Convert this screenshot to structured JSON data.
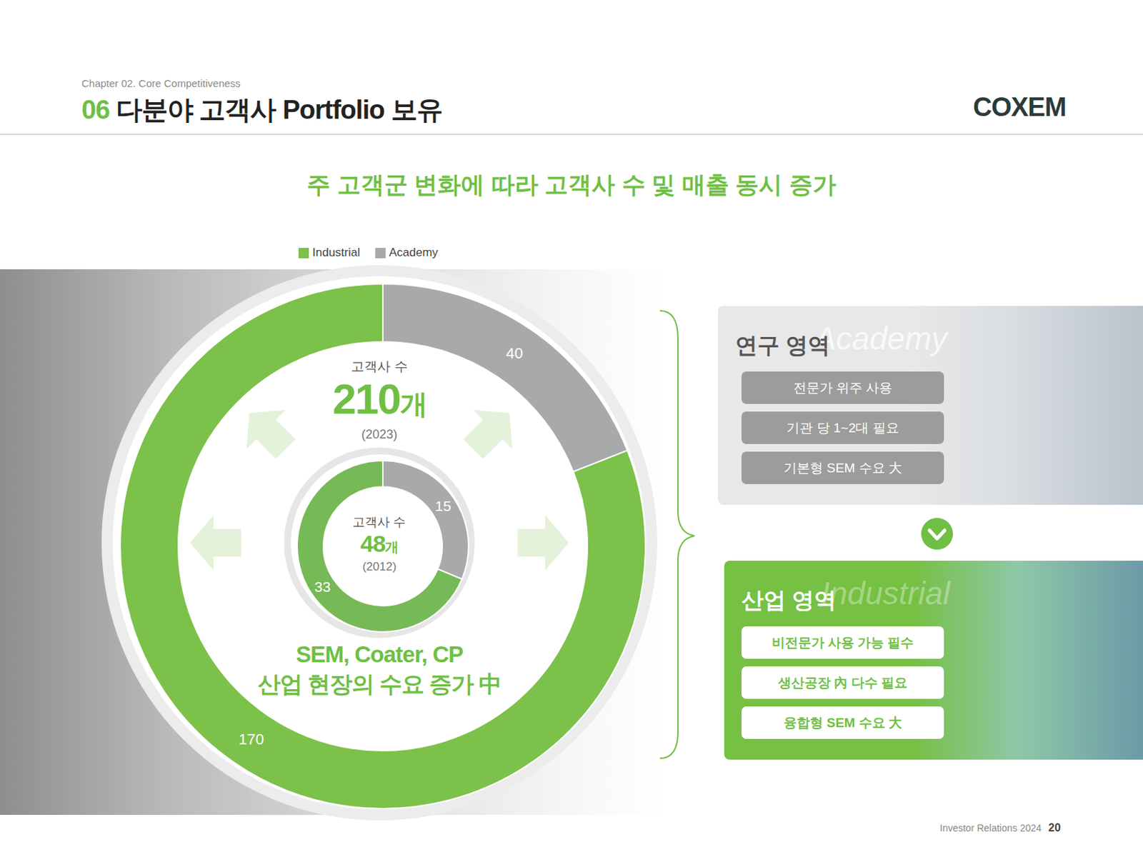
{
  "header": {
    "chapter": "Chapter 02. Core Competitiveness",
    "number": "06",
    "title": "다분야 고객사 Portfolio 보유",
    "logo": "COXEM"
  },
  "headline": "주 고객군 변화에 따라 고객사 수 및 매출 동시 증가",
  "chart_data": [
    {
      "type": "donut",
      "title": "고객사 수",
      "total": 210,
      "unit": "개",
      "year": "(2023)",
      "categories": [
        "Industrial",
        "Academy"
      ],
      "values": [
        170,
        40
      ],
      "colors": [
        "#7cc14a",
        "#a8a9ab"
      ],
      "data_labels": true,
      "legend": "top"
    },
    {
      "type": "donut",
      "title": "고객사 수",
      "total": 48,
      "unit": "개",
      "year": "(2012)",
      "categories": [
        "Industrial",
        "Academy"
      ],
      "values": [
        33,
        15
      ],
      "colors": [
        "#76b957",
        "#a8a9ab"
      ],
      "data_labels": true
    }
  ],
  "callout": [
    "SEM, Coater, CP",
    "산업 현장의 수요 증가 中"
  ],
  "panels": [
    {
      "title": "연구 영역",
      "watermark": "Academy",
      "items": [
        "전문가 위주 사용",
        "기관 당 1~2대 필요",
        "기본형 SEM 수요 大"
      ]
    },
    {
      "title": "산업 영역",
      "watermark": "Industrial",
      "items": [
        "비전문가 사용 가능 필수",
        "생산공장 內 다수 필요",
        "융합형 SEM 수요 大"
      ]
    }
  ],
  "footer": {
    "text": "Investor Relations 2024",
    "page": "20"
  }
}
